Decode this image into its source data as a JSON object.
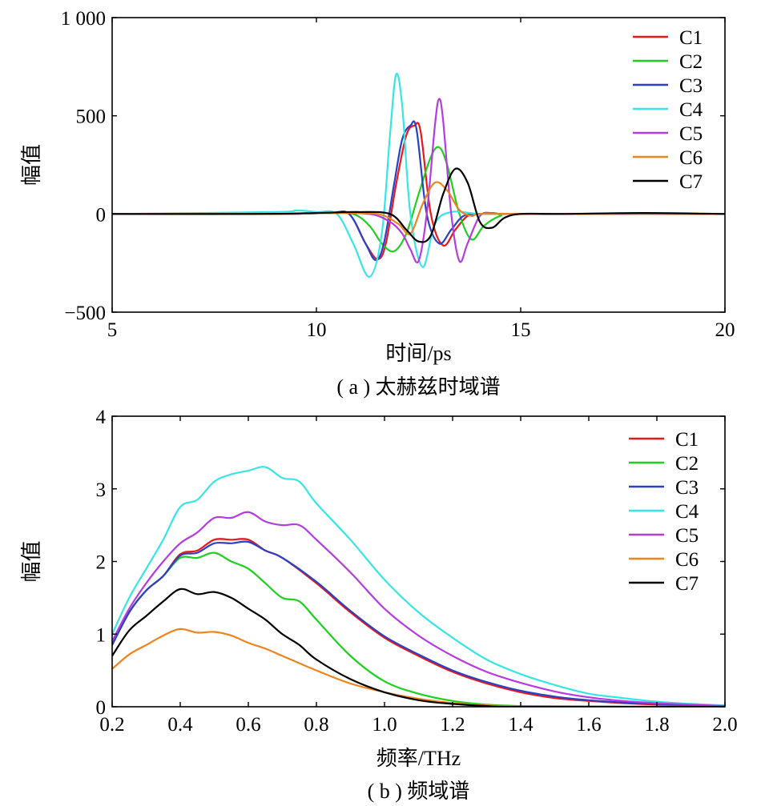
{
  "colors": {
    "C1": "#e8191c",
    "C2": "#1ed11e",
    "C3": "#2b3fc7",
    "C4": "#38e5e5",
    "C5": "#b53be0",
    "C6": "#f0841c",
    "C7": "#000000"
  },
  "chart_data": [
    {
      "type": "line",
      "caption": "( a ) 太赫兹时域谱",
      "xlabel": "时间/ps",
      "ylabel": "幅值",
      "xlim": [
        5,
        20
      ],
      "ylim": [
        -500,
        1000
      ],
      "xticks": [
        5,
        10,
        15,
        20
      ],
      "xtick_labels": [
        "5",
        "10",
        "15",
        "20"
      ],
      "yticks": [
        -500,
        0,
        500,
        1000
      ],
      "ytick_labels": [
        "−500",
        "0",
        "500",
        "1 000"
      ],
      "grid": false,
      "legend_position": "top-right",
      "series": [
        {
          "name": "C1",
          "x": [
            5,
            9,
            10.3,
            10.8,
            11.2,
            11.5,
            11.7,
            11.95,
            12.2,
            12.4,
            12.55,
            12.8,
            13.1,
            13.4,
            13.7,
            14,
            14.5,
            15,
            20
          ],
          "y": [
            0,
            0,
            5,
            0,
            -150,
            -230,
            -150,
            150,
            400,
            450,
            420,
            0,
            -160,
            -80,
            -10,
            0,
            0,
            0,
            0
          ]
        },
        {
          "name": "C2",
          "x": [
            5,
            9,
            10.3,
            10.9,
            11.3,
            11.6,
            11.9,
            12.2,
            12.5,
            12.8,
            13.0,
            13.2,
            13.5,
            13.8,
            14.1,
            14.5,
            15,
            20
          ],
          "y": [
            0,
            0,
            5,
            0,
            -60,
            -150,
            -190,
            -100,
            100,
            290,
            340,
            250,
            0,
            -130,
            -60,
            -10,
            0,
            0
          ]
        },
        {
          "name": "C3",
          "x": [
            5,
            9,
            10.3,
            10.8,
            11.2,
            11.45,
            11.65,
            11.9,
            12.1,
            12.3,
            12.45,
            12.7,
            13.0,
            13.3,
            13.6,
            14,
            14.5,
            15,
            20
          ],
          "y": [
            0,
            0,
            5,
            0,
            -150,
            -235,
            -150,
            150,
            380,
            450,
            430,
            0,
            -150,
            -80,
            -10,
            0,
            0,
            0,
            0
          ]
        },
        {
          "name": "C4",
          "x": [
            5,
            9,
            9.5,
            10,
            10.5,
            10.9,
            11.3,
            11.6,
            11.8,
            11.95,
            12.1,
            12.3,
            12.6,
            12.9,
            13.3,
            14,
            15,
            20
          ],
          "y": [
            0,
            10,
            18,
            10,
            0,
            -150,
            -320,
            -100,
            400,
            710,
            550,
            0,
            -270,
            -50,
            10,
            0,
            0,
            0
          ]
        },
        {
          "name": "C5",
          "x": [
            5,
            9,
            10.3,
            11.3,
            11.8,
            12.1,
            12.3,
            12.5,
            12.7,
            12.9,
            13.0,
            13.1,
            13.3,
            13.5,
            13.7,
            14,
            14.3,
            14.5,
            15,
            20
          ],
          "y": [
            0,
            0,
            5,
            0,
            -40,
            -100,
            -180,
            -240,
            0,
            450,
            585,
            480,
            0,
            -240,
            -150,
            -10,
            5,
            0,
            0,
            0
          ]
        },
        {
          "name": "C6",
          "x": [
            5,
            9,
            10.5,
            11.5,
            12.0,
            12.3,
            12.6,
            12.9,
            13.2,
            13.5,
            13.8,
            14,
            15,
            20
          ],
          "y": [
            0,
            0,
            5,
            0,
            -50,
            -100,
            50,
            160,
            120,
            20,
            -10,
            0,
            0,
            0
          ]
        },
        {
          "name": "C7",
          "x": [
            5,
            8.5,
            10,
            11,
            11.8,
            12.2,
            12.5,
            12.8,
            13.1,
            13.4,
            13.7,
            14.0,
            14.3,
            14.6,
            15,
            16,
            18,
            20
          ],
          "y": [
            0,
            0,
            5,
            10,
            0,
            -80,
            -140,
            -110,
            100,
            230,
            160,
            -40,
            -70,
            -20,
            0,
            0,
            5,
            0
          ]
        }
      ]
    },
    {
      "type": "line",
      "caption": "( b ) 频域谱",
      "xlabel": "频率/THz",
      "ylabel": "幅值",
      "xlim": [
        0.2,
        2.0
      ],
      "ylim": [
        0,
        4
      ],
      "xticks": [
        0.2,
        0.4,
        0.6,
        0.8,
        1.0,
        1.2,
        1.4,
        1.6,
        1.8,
        2.0
      ],
      "xtick_labels": [
        "0.2",
        "0.4",
        "0.6",
        "0.8",
        "1.0",
        "1.2",
        "1.4",
        "1.6",
        "1.8",
        "2.0"
      ],
      "yticks": [
        0,
        1,
        2,
        3,
        4
      ],
      "ytick_labels": [
        "0",
        "1",
        "2",
        "3",
        "4"
      ],
      "grid": false,
      "legend_position": "top-right",
      "series": [
        {
          "name": "C1",
          "x": [
            0.2,
            0.25,
            0.3,
            0.35,
            0.4,
            0.45,
            0.5,
            0.55,
            0.6,
            0.65,
            0.7,
            0.8,
            0.9,
            1.0,
            1.1,
            1.2,
            1.3,
            1.4,
            1.5,
            1.6,
            1.7,
            1.8,
            1.9,
            2.0
          ],
          "y": [
            0.85,
            1.3,
            1.6,
            1.8,
            2.1,
            2.15,
            2.3,
            2.3,
            2.3,
            2.15,
            2.05,
            1.7,
            1.3,
            0.95,
            0.7,
            0.48,
            0.32,
            0.2,
            0.12,
            0.08,
            0.05,
            0.03,
            0.02,
            0.01
          ]
        },
        {
          "name": "C2",
          "x": [
            0.2,
            0.25,
            0.3,
            0.35,
            0.4,
            0.45,
            0.5,
            0.55,
            0.6,
            0.65,
            0.7,
            0.75,
            0.8,
            0.9,
            1.0,
            1.1,
            1.2,
            1.3,
            1.4,
            1.5,
            2.0
          ],
          "y": [
            0.85,
            1.3,
            1.6,
            1.8,
            2.05,
            2.05,
            2.12,
            2.0,
            1.9,
            1.7,
            1.5,
            1.45,
            1.2,
            0.7,
            0.35,
            0.18,
            0.08,
            0.03,
            0.01,
            0.0,
            0.0
          ]
        },
        {
          "name": "C3",
          "x": [
            0.2,
            0.25,
            0.3,
            0.35,
            0.4,
            0.45,
            0.5,
            0.55,
            0.6,
            0.65,
            0.7,
            0.8,
            0.9,
            1.0,
            1.1,
            1.2,
            1.3,
            1.4,
            1.5,
            1.6,
            1.7,
            1.8,
            1.9,
            2.0
          ],
          "y": [
            0.85,
            1.3,
            1.6,
            1.8,
            2.08,
            2.12,
            2.25,
            2.25,
            2.27,
            2.15,
            2.05,
            1.72,
            1.32,
            0.97,
            0.72,
            0.5,
            0.34,
            0.22,
            0.14,
            0.09,
            0.06,
            0.04,
            0.02,
            0.01
          ]
        },
        {
          "name": "C4",
          "x": [
            0.2,
            0.25,
            0.3,
            0.35,
            0.4,
            0.45,
            0.5,
            0.55,
            0.6,
            0.65,
            0.7,
            0.75,
            0.8,
            0.9,
            1.0,
            1.1,
            1.2,
            1.3,
            1.4,
            1.5,
            1.6,
            1.7,
            1.8,
            1.9,
            2.0
          ],
          "y": [
            1.0,
            1.5,
            1.9,
            2.3,
            2.75,
            2.85,
            3.1,
            3.2,
            3.25,
            3.3,
            3.15,
            3.1,
            2.8,
            2.3,
            1.75,
            1.3,
            0.95,
            0.65,
            0.45,
            0.3,
            0.18,
            0.12,
            0.07,
            0.04,
            0.02
          ]
        },
        {
          "name": "C5",
          "x": [
            0.2,
            0.25,
            0.3,
            0.35,
            0.4,
            0.45,
            0.5,
            0.55,
            0.6,
            0.65,
            0.7,
            0.75,
            0.8,
            0.9,
            1.0,
            1.1,
            1.2,
            1.3,
            1.4,
            1.5,
            1.6,
            1.7,
            1.8,
            1.9,
            2.0
          ],
          "y": [
            0.9,
            1.35,
            1.7,
            2.0,
            2.25,
            2.4,
            2.6,
            2.6,
            2.68,
            2.55,
            2.5,
            2.5,
            2.3,
            1.85,
            1.35,
            0.98,
            0.7,
            0.48,
            0.33,
            0.21,
            0.13,
            0.08,
            0.05,
            0.03,
            0.01
          ]
        },
        {
          "name": "C6",
          "x": [
            0.2,
            0.25,
            0.3,
            0.35,
            0.4,
            0.45,
            0.5,
            0.55,
            0.6,
            0.65,
            0.7,
            0.8,
            0.9,
            1.0,
            1.1,
            1.2,
            1.3,
            1.4,
            2.0
          ],
          "y": [
            0.52,
            0.72,
            0.85,
            0.98,
            1.07,
            1.02,
            1.03,
            0.98,
            0.88,
            0.8,
            0.7,
            0.5,
            0.32,
            0.2,
            0.11,
            0.05,
            0.02,
            0.01,
            0.0
          ]
        },
        {
          "name": "C7",
          "x": [
            0.2,
            0.25,
            0.3,
            0.35,
            0.4,
            0.45,
            0.5,
            0.55,
            0.6,
            0.65,
            0.7,
            0.75,
            0.8,
            0.9,
            1.0,
            1.1,
            1.2,
            1.3,
            1.4,
            2.0
          ],
          "y": [
            0.7,
            1.05,
            1.25,
            1.45,
            1.62,
            1.55,
            1.58,
            1.5,
            1.35,
            1.2,
            1.0,
            0.85,
            0.65,
            0.38,
            0.2,
            0.09,
            0.04,
            0.01,
            0.0,
            0.0
          ]
        }
      ]
    }
  ]
}
